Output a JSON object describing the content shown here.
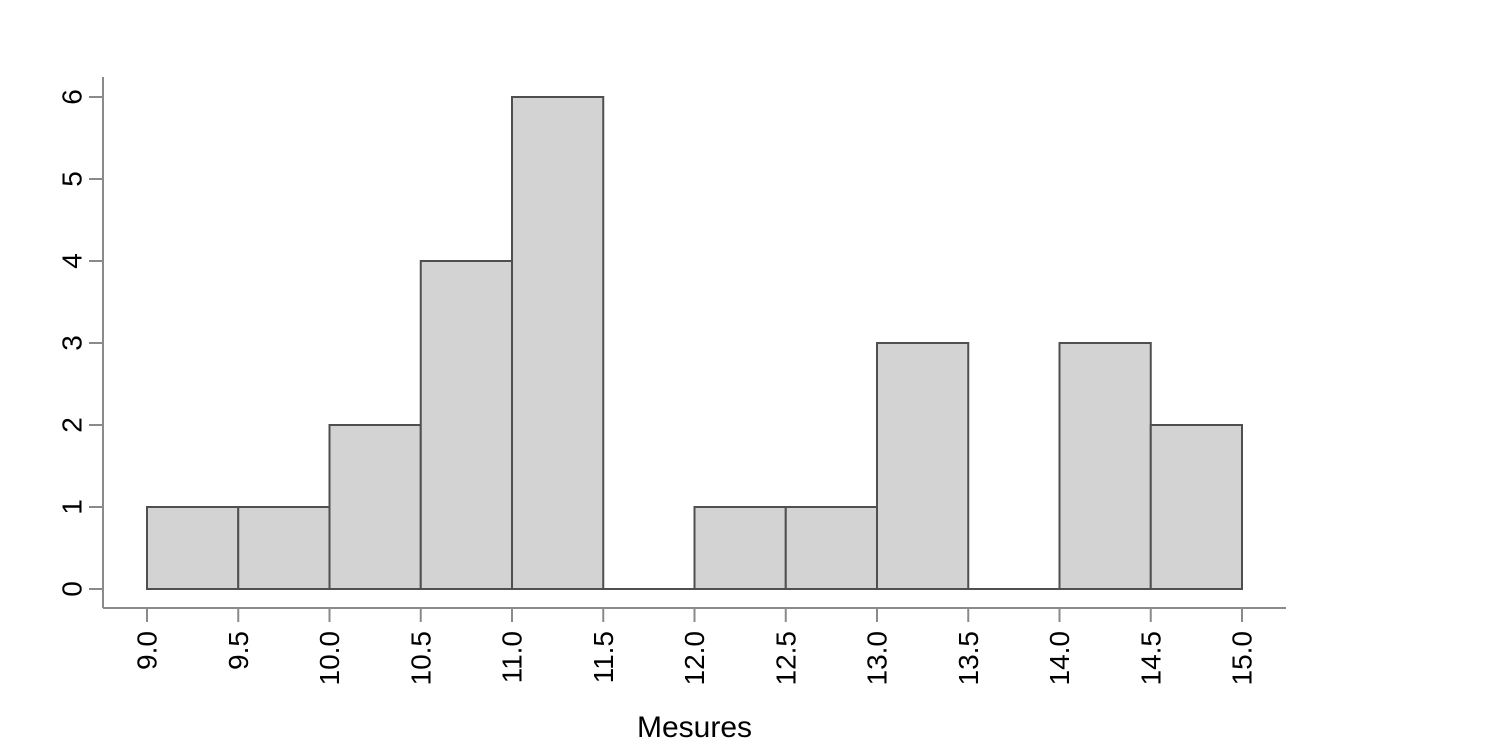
{
  "chart_data": {
    "type": "bar",
    "subtype": "histogram",
    "title": "",
    "xlabel": "Mesures",
    "ylabel": "",
    "breaks": [
      9.0,
      9.5,
      10.0,
      10.5,
      11.0,
      11.5,
      12.0,
      12.5,
      13.0,
      13.5,
      14.0,
      14.5,
      15.0
    ],
    "counts": [
      1,
      1,
      2,
      4,
      6,
      0,
      1,
      1,
      3,
      0,
      3,
      2
    ],
    "x_tick_labels": [
      "9.0",
      "9.5",
      "10.0",
      "10.5",
      "11.0",
      "11.5",
      "12.0",
      "12.5",
      "13.0",
      "13.5",
      "14.0",
      "14.5",
      "15.0"
    ],
    "y_tick_labels": [
      "0",
      "1",
      "2",
      "3",
      "4",
      "5",
      "6"
    ],
    "xlim": [
      9,
      15
    ],
    "ylim": [
      0,
      6
    ],
    "grid": false,
    "legend": null,
    "tick_label_rotation_deg": 90,
    "colors": {
      "bar_fill": "#d3d3d3",
      "bar_stroke": "#4f4f4f",
      "axis": "#8a8a8a",
      "text": "#000000",
      "background": "#ffffff"
    }
  }
}
